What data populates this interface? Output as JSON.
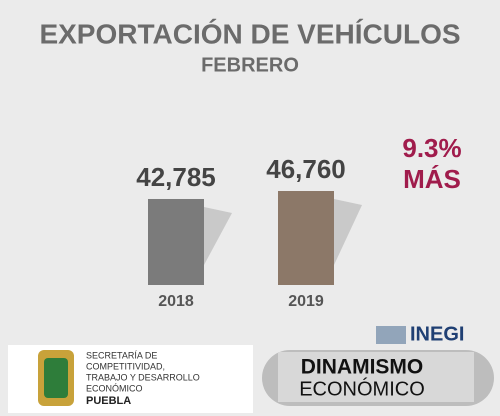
{
  "chart_data": {
    "type": "bar",
    "title": "EXPORTACIÓN DE VEHÍCULOS",
    "subtitle": "FEBRERO",
    "categories": [
      "2018",
      "2019"
    ],
    "values": [
      42785,
      46760
    ],
    "value_labels": [
      "42,785",
      "46,760"
    ],
    "colors": [
      "#7b7b7b",
      "#8c7868"
    ],
    "annotation": [
      "9.3%",
      "MÁS"
    ]
  },
  "footer": {
    "agency": [
      "SECRETARÍA DE",
      "COMPETITIVIDAD,",
      "TRABAJO Y DESARROLLO",
      "ECONÓMICO"
    ],
    "state": "PUEBLA",
    "source": "INEGI",
    "series_title": [
      "DINAMISMO",
      "ECONÓMICO"
    ]
  }
}
